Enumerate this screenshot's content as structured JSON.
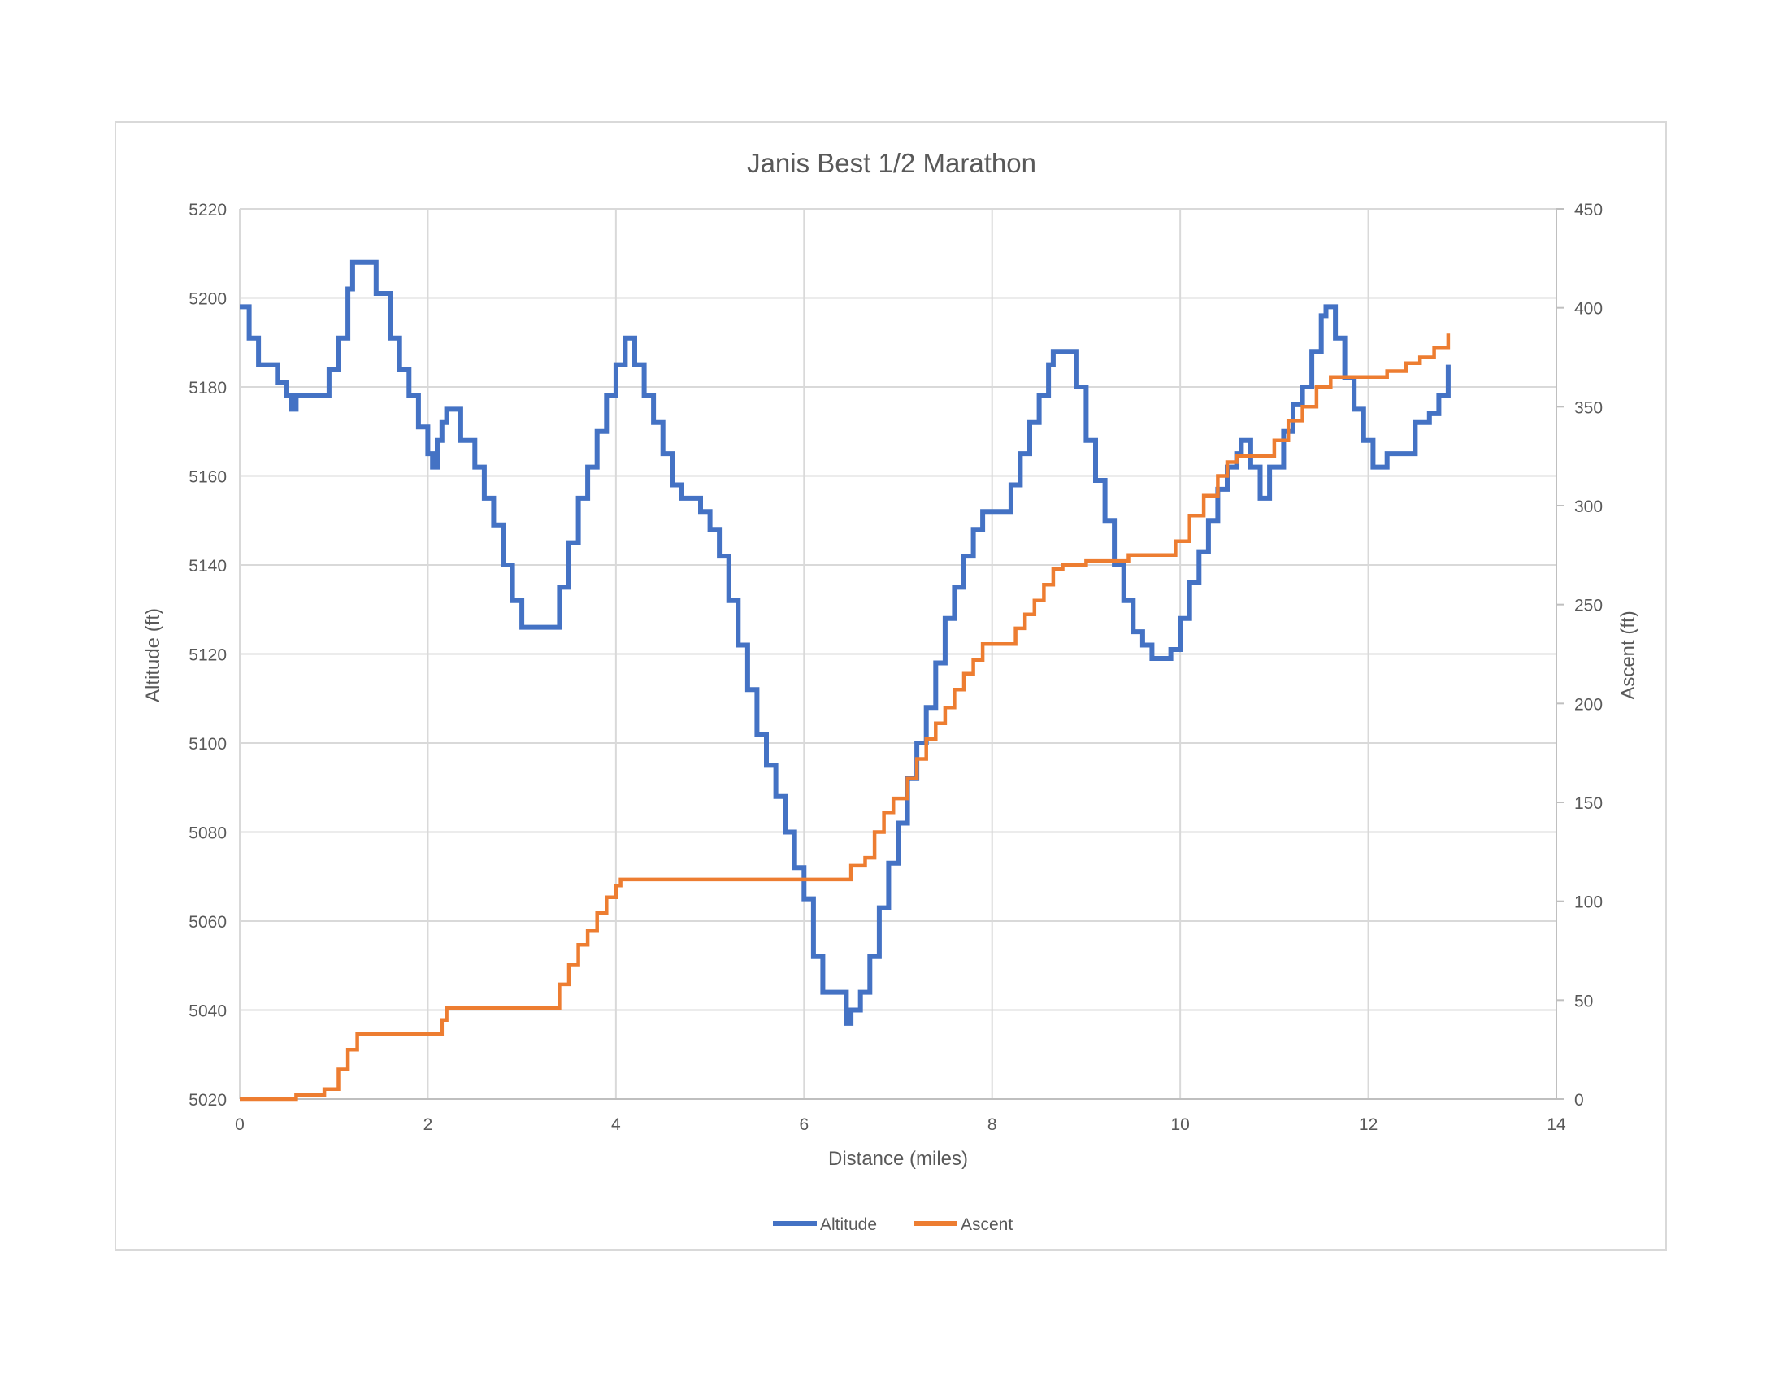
{
  "chart_data": {
    "type": "line",
    "title": "Janis Best 1/2 Marathon",
    "xlabel": "Distance (miles)",
    "ylabel": "Altitude (ft)",
    "y2label": "Ascent (ft)",
    "xlim": [
      0,
      14
    ],
    "ylim": [
      5020,
      5220
    ],
    "y2lim": [
      0,
      450
    ],
    "xticks": [
      "0",
      "2",
      "4",
      "6",
      "8",
      "10",
      "12",
      "14"
    ],
    "yticks": [
      "5020",
      "5040",
      "5060",
      "5080",
      "5100",
      "5120",
      "5140",
      "5160",
      "5180",
      "5200",
      "5220"
    ],
    "y2ticks": [
      "0",
      "50",
      "100",
      "150",
      "200",
      "250",
      "300",
      "350",
      "400",
      "450"
    ],
    "grid": true,
    "legend": "bottom",
    "series": [
      {
        "name": "Altitude",
        "axis": "left",
        "color": "#4472c4",
        "points": [
          [
            0,
            5198
          ],
          [
            0.1,
            5191
          ],
          [
            0.2,
            5185
          ],
          [
            0.35,
            5185
          ],
          [
            0.4,
            5181
          ],
          [
            0.5,
            5178
          ],
          [
            0.55,
            5175
          ],
          [
            0.6,
            5178
          ],
          [
            0.9,
            5178
          ],
          [
            0.95,
            5184
          ],
          [
            1.05,
            5191
          ],
          [
            1.15,
            5202
          ],
          [
            1.2,
            5208
          ],
          [
            1.35,
            5208
          ],
          [
            1.45,
            5201
          ],
          [
            1.6,
            5191
          ],
          [
            1.7,
            5184
          ],
          [
            1.8,
            5178
          ],
          [
            1.9,
            5171
          ],
          [
            2.0,
            5165
          ],
          [
            2.05,
            5162
          ],
          [
            2.1,
            5168
          ],
          [
            2.15,
            5172
          ],
          [
            2.2,
            5175
          ],
          [
            2.3,
            5175
          ],
          [
            2.35,
            5168
          ],
          [
            2.5,
            5162
          ],
          [
            2.6,
            5155
          ],
          [
            2.7,
            5149
          ],
          [
            2.8,
            5140
          ],
          [
            2.9,
            5132
          ],
          [
            3.0,
            5126
          ],
          [
            3.3,
            5126
          ],
          [
            3.4,
            5135
          ],
          [
            3.5,
            5145
          ],
          [
            3.6,
            5155
          ],
          [
            3.7,
            5162
          ],
          [
            3.8,
            5170
          ],
          [
            3.9,
            5178
          ],
          [
            4.0,
            5185
          ],
          [
            4.1,
            5191
          ],
          [
            4.2,
            5185
          ],
          [
            4.3,
            5178
          ],
          [
            4.4,
            5172
          ],
          [
            4.5,
            5165
          ],
          [
            4.6,
            5158
          ],
          [
            4.7,
            5155
          ],
          [
            4.9,
            5152
          ],
          [
            5.0,
            5148
          ],
          [
            5.1,
            5142
          ],
          [
            5.2,
            5132
          ],
          [
            5.3,
            5122
          ],
          [
            5.4,
            5112
          ],
          [
            5.5,
            5102
          ],
          [
            5.6,
            5095
          ],
          [
            5.7,
            5088
          ],
          [
            5.8,
            5080
          ],
          [
            5.9,
            5072
          ],
          [
            6.0,
            5065
          ],
          [
            6.1,
            5052
          ],
          [
            6.2,
            5044
          ],
          [
            6.4,
            5044
          ],
          [
            6.45,
            5037
          ],
          [
            6.5,
            5040
          ],
          [
            6.6,
            5044
          ],
          [
            6.7,
            5052
          ],
          [
            6.8,
            5063
          ],
          [
            6.9,
            5073
          ],
          [
            7.0,
            5082
          ],
          [
            7.1,
            5092
          ],
          [
            7.2,
            5100
          ],
          [
            7.3,
            5108
          ],
          [
            7.4,
            5118
          ],
          [
            7.5,
            5128
          ],
          [
            7.6,
            5135
          ],
          [
            7.7,
            5142
          ],
          [
            7.8,
            5148
          ],
          [
            7.9,
            5152
          ],
          [
            8.15,
            5152
          ],
          [
            8.2,
            5158
          ],
          [
            8.3,
            5165
          ],
          [
            8.4,
            5172
          ],
          [
            8.5,
            5178
          ],
          [
            8.6,
            5185
          ],
          [
            8.65,
            5188
          ],
          [
            8.8,
            5188
          ],
          [
            8.9,
            5180
          ],
          [
            9.0,
            5168
          ],
          [
            9.1,
            5159
          ],
          [
            9.2,
            5150
          ],
          [
            9.3,
            5140
          ],
          [
            9.4,
            5132
          ],
          [
            9.5,
            5125
          ],
          [
            9.6,
            5122
          ],
          [
            9.7,
            5119
          ],
          [
            9.9,
            5121
          ],
          [
            10.0,
            5128
          ],
          [
            10.1,
            5136
          ],
          [
            10.2,
            5143
          ],
          [
            10.3,
            5150
          ],
          [
            10.4,
            5157
          ],
          [
            10.5,
            5162
          ],
          [
            10.6,
            5165
          ],
          [
            10.65,
            5168
          ],
          [
            10.75,
            5162
          ],
          [
            10.85,
            5155
          ],
          [
            10.95,
            5162
          ],
          [
            11.1,
            5170
          ],
          [
            11.2,
            5176
          ],
          [
            11.3,
            5180
          ],
          [
            11.4,
            5188
          ],
          [
            11.5,
            5196
          ],
          [
            11.55,
            5198
          ],
          [
            11.65,
            5191
          ],
          [
            11.75,
            5182
          ],
          [
            11.85,
            5175
          ],
          [
            11.95,
            5168
          ],
          [
            12.05,
            5162
          ],
          [
            12.2,
            5165
          ],
          [
            12.35,
            5165
          ],
          [
            12.5,
            5172
          ],
          [
            12.65,
            5174
          ],
          [
            12.75,
            5178
          ],
          [
            12.85,
            5185
          ]
        ]
      },
      {
        "name": "Ascent",
        "axis": "right",
        "color": "#ed7d31",
        "points": [
          [
            0,
            0
          ],
          [
            0.6,
            2
          ],
          [
            0.9,
            5
          ],
          [
            1.05,
            15
          ],
          [
            1.15,
            25
          ],
          [
            1.25,
            33
          ],
          [
            2.05,
            33
          ],
          [
            2.15,
            40
          ],
          [
            2.2,
            46
          ],
          [
            3.3,
            46
          ],
          [
            3.4,
            58
          ],
          [
            3.5,
            68
          ],
          [
            3.6,
            78
          ],
          [
            3.7,
            85
          ],
          [
            3.8,
            94
          ],
          [
            3.9,
            102
          ],
          [
            4.0,
            108
          ],
          [
            4.05,
            111
          ],
          [
            6.4,
            111
          ],
          [
            6.5,
            118
          ],
          [
            6.65,
            122
          ],
          [
            6.75,
            135
          ],
          [
            6.85,
            145
          ],
          [
            6.95,
            152
          ],
          [
            7.1,
            162
          ],
          [
            7.2,
            172
          ],
          [
            7.3,
            182
          ],
          [
            7.4,
            190
          ],
          [
            7.5,
            198
          ],
          [
            7.6,
            207
          ],
          [
            7.7,
            215
          ],
          [
            7.8,
            222
          ],
          [
            7.9,
            230
          ],
          [
            8.15,
            230
          ],
          [
            8.25,
            238
          ],
          [
            8.35,
            245
          ],
          [
            8.45,
            252
          ],
          [
            8.55,
            260
          ],
          [
            8.65,
            268
          ],
          [
            8.75,
            270
          ],
          [
            9.0,
            272
          ],
          [
            9.35,
            272
          ],
          [
            9.45,
            275
          ],
          [
            9.85,
            275
          ],
          [
            9.95,
            282
          ],
          [
            10.1,
            295
          ],
          [
            10.25,
            305
          ],
          [
            10.4,
            315
          ],
          [
            10.5,
            322
          ],
          [
            10.6,
            325
          ],
          [
            10.75,
            325
          ],
          [
            10.85,
            325
          ],
          [
            11.0,
            333
          ],
          [
            11.15,
            343
          ],
          [
            11.3,
            350
          ],
          [
            11.45,
            360
          ],
          [
            11.6,
            365
          ],
          [
            12.1,
            365
          ],
          [
            12.2,
            368
          ],
          [
            12.4,
            372
          ],
          [
            12.55,
            375
          ],
          [
            12.7,
            380
          ],
          [
            12.85,
            387
          ]
        ]
      }
    ]
  }
}
